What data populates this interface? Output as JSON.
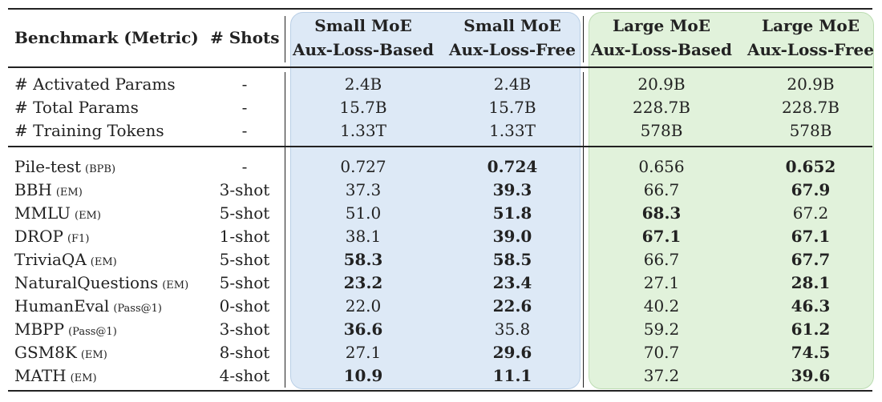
{
  "header": {
    "benchmark": "Benchmark (Metric)",
    "shots": "# Shots",
    "columns": [
      {
        "line1": "Small MoE",
        "line2": "Aux-Loss-Based"
      },
      {
        "line1": "Small MoE",
        "line2": "Aux-Loss-Free"
      },
      {
        "line1": "Large MoE",
        "line2": "Aux-Loss-Based"
      },
      {
        "line1": "Large MoE",
        "line2": "Aux-Loss-Free"
      }
    ]
  },
  "config_rows": [
    {
      "name": "# Activated Params",
      "shots": "-",
      "values": [
        "2.4B",
        "2.4B",
        "20.9B",
        "20.9B"
      ]
    },
    {
      "name": "# Total Params",
      "shots": "-",
      "values": [
        "15.7B",
        "15.7B",
        "228.7B",
        "228.7B"
      ]
    },
    {
      "name": "# Training Tokens",
      "shots": "-",
      "values": [
        "1.33T",
        "1.33T",
        "578B",
        "578B"
      ]
    }
  ],
  "result_rows": [
    {
      "name": "Pile-test",
      "metric": "(BPB)",
      "shots": "-",
      "values": [
        "0.727",
        "0.724",
        "0.656",
        "0.652"
      ],
      "bold": [
        false,
        true,
        false,
        true
      ]
    },
    {
      "name": "BBH",
      "metric": "(EM)",
      "shots": "3-shot",
      "values": [
        "37.3",
        "39.3",
        "66.7",
        "67.9"
      ],
      "bold": [
        false,
        true,
        false,
        true
      ]
    },
    {
      "name": "MMLU",
      "metric": "(EM)",
      "shots": "5-shot",
      "values": [
        "51.0",
        "51.8",
        "68.3",
        "67.2"
      ],
      "bold": [
        false,
        true,
        true,
        false
      ]
    },
    {
      "name": "DROP",
      "metric": "(F1)",
      "shots": "1-shot",
      "values": [
        "38.1",
        "39.0",
        "67.1",
        "67.1"
      ],
      "bold": [
        false,
        true,
        true,
        true
      ]
    },
    {
      "name": "TriviaQA",
      "metric": "(EM)",
      "shots": "5-shot",
      "values": [
        "58.3",
        "58.5",
        "66.7",
        "67.7"
      ],
      "bold": [
        true,
        true,
        false,
        true
      ]
    },
    {
      "name": "NaturalQuestions",
      "metric": "(EM)",
      "shots": "5-shot",
      "values": [
        "23.2",
        "23.4",
        "27.1",
        "28.1"
      ],
      "bold": [
        true,
        true,
        false,
        true
      ]
    },
    {
      "name": "HumanEval",
      "metric": "(Pass@1)",
      "shots": "0-shot",
      "values": [
        "22.0",
        "22.6",
        "40.2",
        "46.3"
      ],
      "bold": [
        false,
        true,
        false,
        true
      ]
    },
    {
      "name": "MBPP",
      "metric": "(Pass@1)",
      "shots": "3-shot",
      "values": [
        "36.6",
        "35.8",
        "59.2",
        "61.2"
      ],
      "bold": [
        true,
        false,
        false,
        true
      ]
    },
    {
      "name": "GSM8K",
      "metric": "(EM)",
      "shots": "8-shot",
      "values": [
        "27.1",
        "29.6",
        "70.7",
        "74.5"
      ],
      "bold": [
        false,
        true,
        false,
        true
      ]
    },
    {
      "name": "MATH",
      "metric": "(EM)",
      "shots": "4-shot",
      "values": [
        "10.9",
        "11.1",
        "37.2",
        "39.6"
      ],
      "bold": [
        true,
        true,
        false,
        true
      ]
    }
  ]
}
